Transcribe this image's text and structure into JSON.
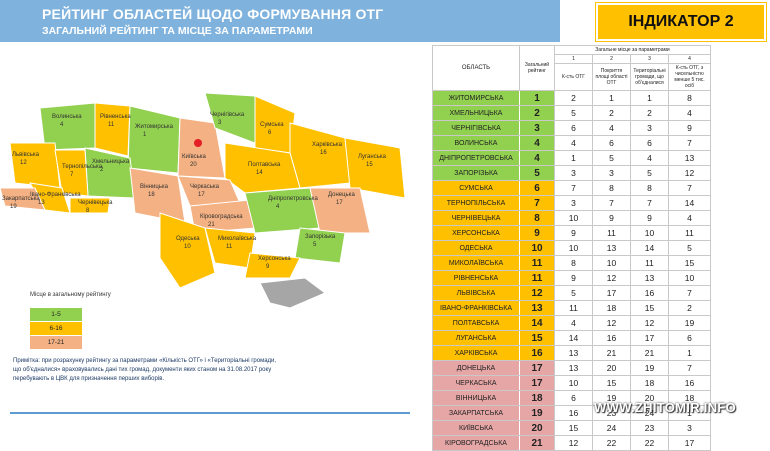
{
  "header": {
    "title": "РЕЙТИНГ ОБЛАСТЕЙ ЩОДО ФОРМУВАННЯ ОТГ",
    "subtitle": "ЗАГАЛЬНИЙ РЕЙТИНГ ТА МІСЦЕ ЗА ПАРАМЕТРАМИ",
    "indicator": "ІНДИКАТОР 2"
  },
  "legend": {
    "title": "Місце в загальному рейтингу",
    "items": [
      {
        "label": "1-5",
        "color": "#92d050"
      },
      {
        "label": "6-16",
        "color": "#ffc000"
      },
      {
        "label": "17-21",
        "color": "#f4b183"
      }
    ]
  },
  "note": "Примітка: при розрахунку рейтингу за параметрами «Кількість ОТГ» і «Територіальні громади, що об'єдналися» враховувались дані тих громад, документи яких станом на 31.08.2017 року перебувають в ЦВК для призначення перших виборів.",
  "watermark": "WWW.ZHITOMIR.INFO",
  "map_labels": [
    {
      "name": "Волинська",
      "rank": "4"
    },
    {
      "name": "Рівненська",
      "rank": "11"
    },
    {
      "name": "Житомирська",
      "rank": "1"
    },
    {
      "name": "Київська",
      "rank": "20"
    },
    {
      "name": "Чернігівська",
      "rank": "3"
    },
    {
      "name": "Сумська",
      "rank": "6"
    },
    {
      "name": "Харківська",
      "rank": "16"
    },
    {
      "name": "Луганська",
      "rank": "15"
    },
    {
      "name": "Полтавська",
      "rank": "14"
    },
    {
      "name": "Львівська",
      "rank": "12"
    },
    {
      "name": "Хмельницька",
      "rank": "2"
    },
    {
      "name": "Тернопільська",
      "rank": "7"
    },
    {
      "name": "Івано-Франківська",
      "rank": "13"
    },
    {
      "name": "Закарпатська",
      "rank": "19"
    },
    {
      "name": "Чернівецька",
      "rank": "8"
    },
    {
      "name": "Вінницька",
      "rank": "18"
    },
    {
      "name": "Черкаська",
      "rank": "17"
    },
    {
      "name": "Кіровоградська",
      "rank": "21"
    },
    {
      "name": "Дніпропетровська",
      "rank": "4"
    },
    {
      "name": "Донецька",
      "rank": "17"
    },
    {
      "name": "Запорізька",
      "rank": "5"
    },
    {
      "name": "Миколаївська",
      "rank": "11"
    },
    {
      "name": "Одеська",
      "rank": "10"
    },
    {
      "name": "Херсонська",
      "rank": "9"
    }
  ],
  "chart_data": {
    "type": "table",
    "columns": {
      "oblast": "ОБЛАСТЬ",
      "overall": "Загальний рейтинг",
      "group": "Загальне місце за параметрами",
      "param_numbers": [
        "1",
        "2",
        "3",
        "4"
      ],
      "param_names": [
        "К-сть ОТГ",
        "Покриття площі області ОТГ",
        "Територіальні громади, що об'єдналися",
        "К-сть ОТГ, з чисельністю менше 5 тис. осіб"
      ]
    },
    "rows": [
      {
        "oblast": "ЖИТОМИРСЬКА",
        "overall": 1,
        "params": [
          2,
          1,
          1,
          8
        ],
        "color": "#92d050"
      },
      {
        "oblast": "ХМЕЛЬНИЦЬКА",
        "overall": 2,
        "params": [
          5,
          2,
          2,
          4
        ],
        "color": "#92d050"
      },
      {
        "oblast": "ЧЕРНІГІВСЬКА",
        "overall": 3,
        "params": [
          6,
          4,
          3,
          9
        ],
        "color": "#92d050"
      },
      {
        "oblast": "ВОЛИНСЬКА",
        "overall": 4,
        "params": [
          4,
          6,
          6,
          7
        ],
        "color": "#92d050"
      },
      {
        "oblast": "ДНІПРОПЕТРОВСЬКА",
        "overall": 4,
        "params": [
          1,
          5,
          4,
          13
        ],
        "color": "#92d050"
      },
      {
        "oblast": "ЗАПОРІЗЬКА",
        "overall": 5,
        "params": [
          3,
          3,
          5,
          12
        ],
        "color": "#92d050"
      },
      {
        "oblast": "СУМСЬКА",
        "overall": 6,
        "params": [
          7,
          8,
          8,
          7
        ],
        "color": "#ffc000"
      },
      {
        "oblast": "ТЕРНОПІЛЬСЬКА",
        "overall": 7,
        "params": [
          3,
          7,
          7,
          14
        ],
        "color": "#ffc000"
      },
      {
        "oblast": "ЧЕРНІВЕЦЬКА",
        "overall": 8,
        "params": [
          10,
          9,
          9,
          4
        ],
        "color": "#ffc000"
      },
      {
        "oblast": "ХЕРСОНСЬКА",
        "overall": 9,
        "params": [
          9,
          11,
          10,
          11
        ],
        "color": "#ffc000"
      },
      {
        "oblast": "ОДЕСЬКА",
        "overall": 10,
        "params": [
          10,
          13,
          14,
          5
        ],
        "color": "#ffc000"
      },
      {
        "oblast": "МИКОЛАЇВСЬКА",
        "overall": 11,
        "params": [
          8,
          10,
          11,
          15
        ],
        "color": "#ffc000"
      },
      {
        "oblast": "РІВНЕНСЬКА",
        "overall": 11,
        "params": [
          9,
          12,
          13,
          10
        ],
        "color": "#ffc000"
      },
      {
        "oblast": "ЛЬВІВСЬКА",
        "overall": 12,
        "params": [
          5,
          17,
          16,
          7
        ],
        "color": "#ffc000"
      },
      {
        "oblast": "ІВАНО-ФРАНКІВСЬКА",
        "overall": 13,
        "params": [
          11,
          18,
          15,
          2
        ],
        "color": "#ffc000"
      },
      {
        "oblast": "ПОЛТАВСЬКА",
        "overall": 14,
        "params": [
          4,
          12,
          12,
          19
        ],
        "color": "#ffc000"
      },
      {
        "oblast": "ЛУГАНСЬКА",
        "overall": 15,
        "params": [
          14,
          16,
          17,
          6
        ],
        "color": "#ffc000"
      },
      {
        "oblast": "ХАРКІВСЬКА",
        "overall": 16,
        "params": [
          13,
          21,
          21,
          1
        ],
        "color": "#ffc000"
      },
      {
        "oblast": "ДОНЕЦЬКА",
        "overall": 17,
        "params": [
          13,
          20,
          19,
          7
        ],
        "color": "#e6a6a6"
      },
      {
        "oblast": "ЧЕРКАСЬКА",
        "overall": 17,
        "params": [
          10,
          15,
          18,
          16
        ],
        "color": "#e6a6a6"
      },
      {
        "oblast": "ВІННИЦЬКА",
        "overall": 18,
        "params": [
          6,
          19,
          20,
          18
        ],
        "color": "#e6a6a6"
      },
      {
        "oblast": "ЗАКАРПАТСЬКА",
        "overall": 19,
        "params": [
          16,
          23,
          24,
          1
        ],
        "color": "#e6a6a6"
      },
      {
        "oblast": "КИЇВСЬКА",
        "overall": 20,
        "params": [
          15,
          24,
          23,
          3
        ],
        "color": "#e6a6a6"
      },
      {
        "oblast": "КІРОВОГРАДСЬКА",
        "overall": 21,
        "params": [
          12,
          22,
          22,
          17
        ],
        "color": "#e6a6a6"
      }
    ]
  }
}
